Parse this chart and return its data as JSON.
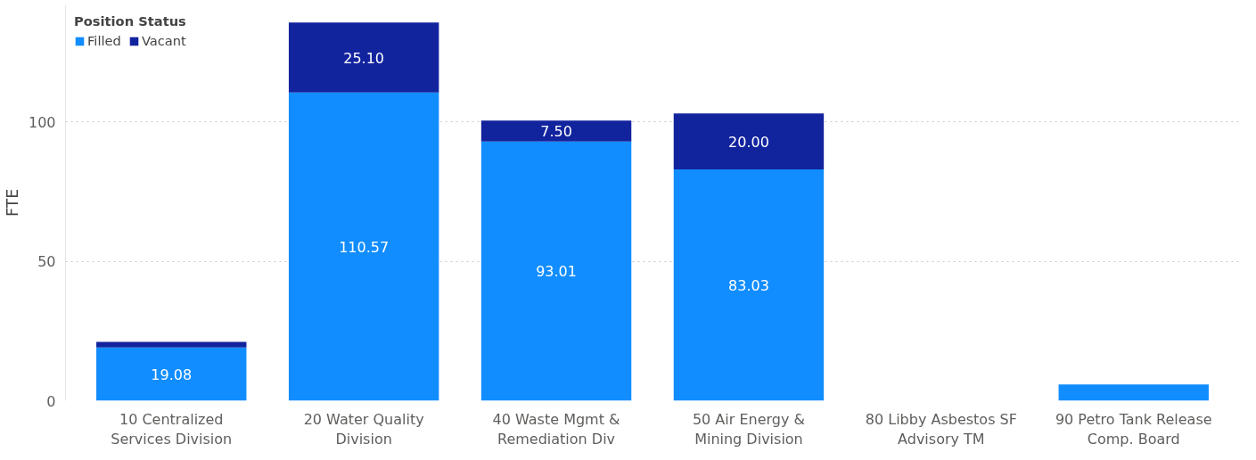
{
  "chart_data": {
    "type": "bar",
    "stacked": true,
    "ylabel": "FTE",
    "legend_title": "Position Status",
    "legend": "top left",
    "grid": "y",
    "categories": [
      "10 Centralized Services Division",
      "20 Water Quality Division",
      "40 Waste Mgmt & Remediation Div",
      "50 Air Energy & Mining Division",
      "80 Libby Asbestos SF Advisory TM",
      "90 Petro Tank Release Comp. Board"
    ],
    "ylim": [
      0,
      142
    ],
    "yticks": [
      0,
      50,
      100
    ],
    "series": [
      {
        "name": "Filled",
        "color": "#118dff",
        "values": [
          19.08,
          110.57,
          93.01,
          83.03,
          null,
          5.8
        ],
        "value_labels": [
          "19.08",
          "110.57",
          "93.01",
          "83.03",
          null,
          null
        ]
      },
      {
        "name": "Vacant",
        "color": "#12239e",
        "values": [
          2,
          25.1,
          7.5,
          20,
          null,
          null
        ],
        "value_labels": [
          null,
          "25.10",
          "7.50",
          "20.00",
          null,
          null
        ]
      }
    ]
  }
}
